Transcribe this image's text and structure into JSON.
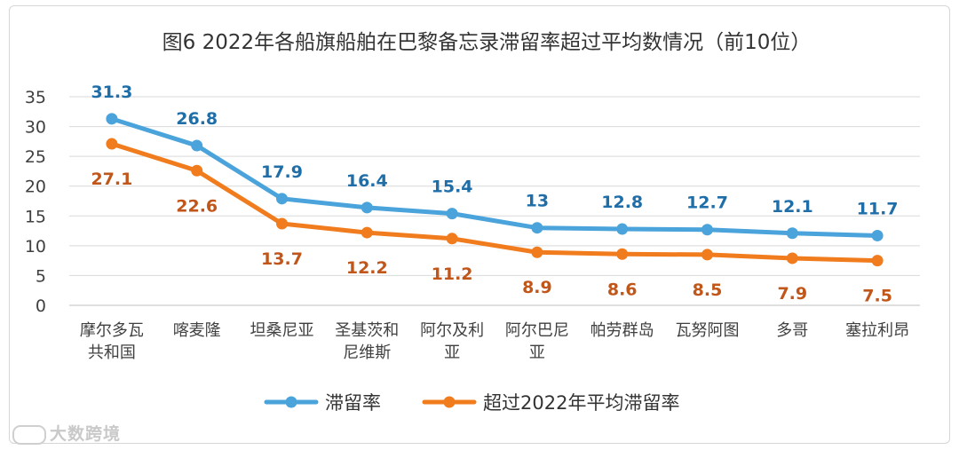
{
  "chart_data": {
    "type": "line",
    "title": "图6   2022年各船旗船舶在巴黎备忘录滞留率超过平均数情况（前10位）",
    "categories": [
      [
        "摩尔多瓦",
        "共和国"
      ],
      [
        "喀麦隆"
      ],
      [
        "坦桑尼亚"
      ],
      [
        "圣基茨和",
        "尼维斯"
      ],
      [
        "阿尔及利",
        "亚"
      ],
      [
        "阿尔巴尼",
        "亚"
      ],
      [
        "帕劳群岛"
      ],
      [
        "瓦努阿图"
      ],
      [
        "多哥"
      ],
      [
        "塞拉利昂"
      ]
    ],
    "series": [
      {
        "name": "滞留率",
        "color": "#4aa3da",
        "values": [
          31.3,
          26.8,
          17.9,
          16.4,
          15.4,
          13,
          12.8,
          12.7,
          12.1,
          11.7
        ],
        "labels": [
          "31.3",
          "26.8",
          "17.9",
          "16.4",
          "15.4",
          "13",
          "12.8",
          "12.7",
          "12.1",
          "11.7"
        ],
        "label_color": "#1f6ea8",
        "label_position": "above"
      },
      {
        "name": "超过2022年平均滞留率",
        "color": "#f07c1e",
        "values": [
          27.1,
          22.6,
          13.7,
          12.2,
          11.2,
          8.9,
          8.6,
          8.5,
          7.9,
          7.5
        ],
        "labels": [
          "27.1",
          "22.6",
          "13.7",
          "12.2",
          "11.2",
          "8.9",
          "8.6",
          "8.5",
          "7.9",
          "7.5"
        ],
        "label_color": "#c0561a",
        "label_position": "below"
      }
    ],
    "ylim": [
      0,
      35
    ],
    "yticks": [
      "0",
      "5",
      "10",
      "15",
      "20",
      "25",
      "30",
      "35"
    ],
    "grid": true,
    "legend": "bottom-center"
  },
  "watermark": "大数跨境"
}
